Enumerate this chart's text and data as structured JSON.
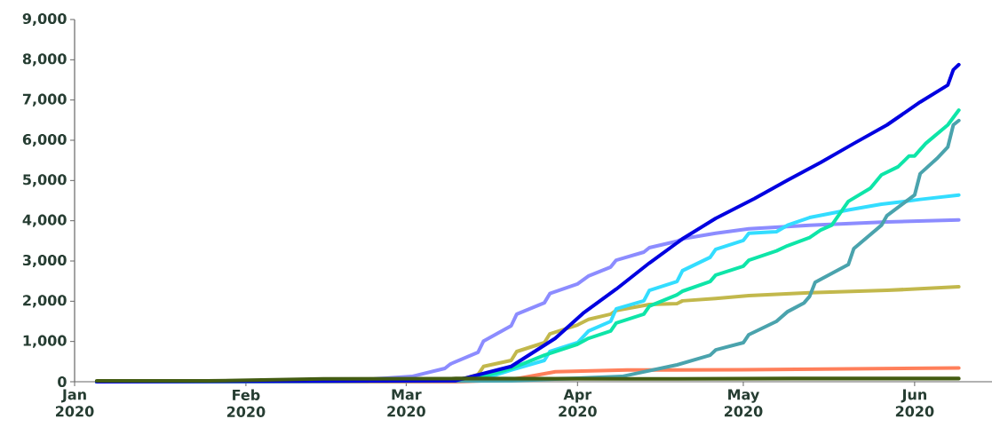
{
  "chart_data": {
    "type": "line",
    "xlim": [
      "2020-01-01",
      "2020-06-15"
    ],
    "xticks": [
      {
        "value": "2020-01-01",
        "label": "Jan 2020"
      },
      {
        "value": "2020-02-01",
        "label": "Feb 2020"
      },
      {
        "value": "2020-03-01",
        "label": "Mar 2020"
      },
      {
        "value": "2020-04-01",
        "label": "Apr 2020"
      },
      {
        "value": "2020-05-01",
        "label": "May 2020"
      },
      {
        "value": "2020-06-01",
        "label": "Jun 2020"
      }
    ],
    "ylim": [
      0,
      9000
    ],
    "yticks": [
      0,
      {
        "value": 1000,
        "label": "1,000"
      },
      {
        "value": 2000,
        "label": "2,000"
      },
      {
        "value": 3000,
        "label": "3,000"
      },
      {
        "value": 4000,
        "label": "4,000"
      },
      {
        "value": 5000,
        "label": "5,000"
      },
      {
        "value": 6000,
        "label": "6,000"
      },
      {
        "value": 7000,
        "label": "7,000"
      },
      {
        "value": 8000,
        "label": "8,000"
      },
      {
        "value": 9000,
        "label": "9,000"
      }
    ],
    "series": [
      {
        "color": "#ff7f5a",
        "x": [
          "2020-01-05",
          "2020-03-10",
          "2020-03-20",
          "2020-03-28",
          "2020-04-10",
          "2020-05-01",
          "2020-06-09"
        ],
        "values": [
          0,
          0,
          50,
          250,
          290,
          300,
          340
        ]
      },
      {
        "color": "#c2b84c",
        "x": [
          "2020-01-05",
          "2020-03-10",
          "2020-03-14",
          "2020-03-15",
          "2020-03-20",
          "2020-03-21",
          "2020-03-26",
          "2020-03-27",
          "2020-04-01",
          "2020-04-03",
          "2020-04-07",
          "2020-04-08",
          "2020-04-14",
          "2020-04-19",
          "2020-04-20",
          "2020-04-26",
          "2020-05-02",
          "2020-05-13",
          "2020-05-27",
          "2020-06-09"
        ],
        "values": [
          0,
          20,
          180,
          380,
          530,
          750,
          970,
          1190,
          1410,
          1550,
          1680,
          1770,
          1920,
          1940,
          2010,
          2070,
          2140,
          2210,
          2270,
          2360
        ]
      },
      {
        "color": "#8c8cff",
        "x": [
          "2020-01-05",
          "2020-02-20",
          "2020-03-02",
          "2020-03-08",
          "2020-03-09",
          "2020-03-14",
          "2020-03-15",
          "2020-03-20",
          "2020-03-21",
          "2020-03-26",
          "2020-03-27",
          "2020-04-01",
          "2020-04-03",
          "2020-04-07",
          "2020-04-08",
          "2020-04-13",
          "2020-04-14",
          "2020-04-19",
          "2020-04-20",
          "2020-04-26",
          "2020-05-02",
          "2020-05-13",
          "2020-05-27",
          "2020-06-09"
        ],
        "values": [
          0,
          30,
          130,
          330,
          440,
          730,
          1010,
          1390,
          1680,
          1960,
          2190,
          2430,
          2630,
          2850,
          3020,
          3220,
          3330,
          3490,
          3550,
          3690,
          3800,
          3890,
          3970,
          4020
        ]
      },
      {
        "color": "#33ddff",
        "x": [
          "2020-01-05",
          "2020-03-14",
          "2020-03-20",
          "2020-03-26",
          "2020-03-27",
          "2020-04-01",
          "2020-04-03",
          "2020-04-07",
          "2020-04-08",
          "2020-04-13",
          "2020-04-14",
          "2020-04-19",
          "2020-04-20",
          "2020-04-25",
          "2020-04-26",
          "2020-05-01",
          "2020-05-02",
          "2020-05-07",
          "2020-05-09",
          "2020-05-13",
          "2020-05-20",
          "2020-05-26",
          "2020-06-02",
          "2020-06-09"
        ],
        "values": [
          0,
          30,
          290,
          530,
          750,
          970,
          1260,
          1500,
          1810,
          2010,
          2270,
          2490,
          2760,
          3090,
          3290,
          3510,
          3690,
          3730,
          3890,
          4080,
          4270,
          4410,
          4530,
          4640
        ]
      },
      {
        "color": "#0ee5a8",
        "x": [
          "2020-01-05",
          "2020-03-10",
          "2020-03-15",
          "2020-03-20",
          "2020-03-26",
          "2020-04-01",
          "2020-04-03",
          "2020-04-07",
          "2020-04-08",
          "2020-04-13",
          "2020-04-14",
          "2020-04-19",
          "2020-04-20",
          "2020-04-25",
          "2020-04-26",
          "2020-05-01",
          "2020-05-02",
          "2020-05-07",
          "2020-05-09",
          "2020-05-13",
          "2020-05-15",
          "2020-05-17",
          "2020-05-20",
          "2020-05-24",
          "2020-05-26",
          "2020-05-29",
          "2020-05-31",
          "2020-06-01",
          "2020-06-03",
          "2020-06-07",
          "2020-06-09"
        ],
        "values": [
          0,
          40,
          130,
          330,
          660,
          930,
          1080,
          1260,
          1460,
          1680,
          1880,
          2160,
          2250,
          2490,
          2650,
          2870,
          3020,
          3250,
          3380,
          3580,
          3770,
          3890,
          4480,
          4810,
          5140,
          5340,
          5610,
          5610,
          5920,
          6380,
          6750
        ]
      },
      {
        "color": "#4aa3ad",
        "x": [
          "2020-01-05",
          "2020-03-20",
          "2020-04-09",
          "2020-04-19",
          "2020-04-25",
          "2020-04-26",
          "2020-05-01",
          "2020-05-02",
          "2020-05-07",
          "2020-05-09",
          "2020-05-12",
          "2020-05-13",
          "2020-05-14",
          "2020-05-20",
          "2020-05-21",
          "2020-05-26",
          "2020-05-27",
          "2020-06-01",
          "2020-06-02",
          "2020-06-05",
          "2020-06-07",
          "2020-06-08",
          "2020-06-09"
        ],
        "values": [
          0,
          20,
          130,
          420,
          660,
          790,
          970,
          1170,
          1500,
          1740,
          1960,
          2120,
          2470,
          2910,
          3310,
          3890,
          4130,
          4640,
          5170,
          5540,
          5830,
          6380,
          6490
        ]
      },
      {
        "color": "#0000e0",
        "x": [
          "2020-01-05",
          "2020-03-10",
          "2020-03-20",
          "2020-03-28",
          "2020-04-02",
          "2020-04-08",
          "2020-04-14",
          "2020-04-20",
          "2020-04-26",
          "2020-05-03",
          "2020-05-09",
          "2020-05-15",
          "2020-05-21",
          "2020-05-27",
          "2020-06-02",
          "2020-06-07",
          "2020-06-08",
          "2020-06-09"
        ],
        "values": [
          0,
          30,
          380,
          1080,
          1700,
          2300,
          2950,
          3550,
          4060,
          4550,
          5010,
          5450,
          5920,
          6380,
          6950,
          7370,
          7750,
          7880
        ]
      },
      {
        "color": "#435c12",
        "x": [
          "2020-01-05",
          "2020-01-25",
          "2020-02-15",
          "2020-03-10",
          "2020-04-10",
          "2020-05-10",
          "2020-06-09"
        ],
        "values": [
          20,
          20,
          70,
          80,
          70,
          80,
          80
        ]
      }
    ]
  }
}
